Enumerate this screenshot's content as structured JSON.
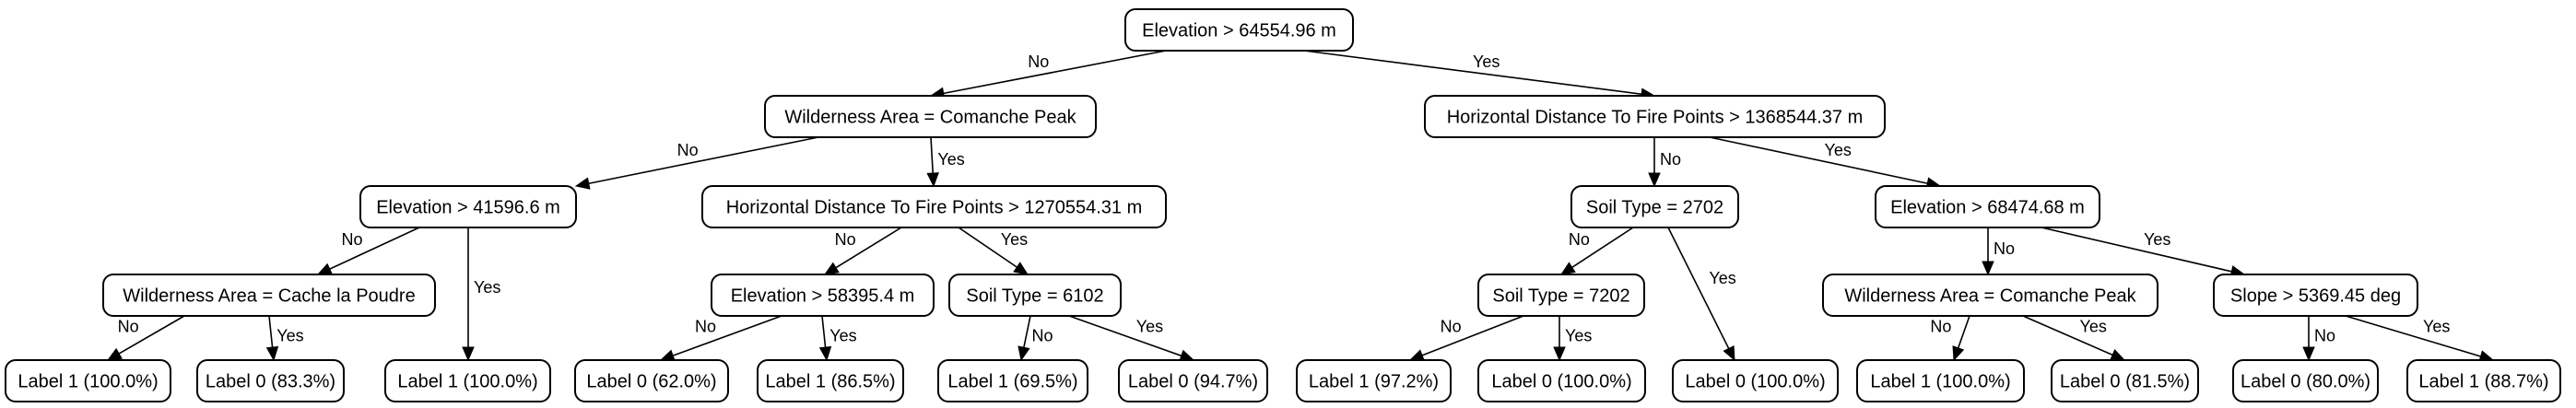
{
  "tree": {
    "nodes": [
      {
        "id": "n0",
        "label": "Elevation > 64554.96 m"
      },
      {
        "id": "n1",
        "label": "Wilderness Area = Comanche Peak"
      },
      {
        "id": "n2",
        "label": "Horizontal Distance To Fire Points > 1368544.37 m"
      },
      {
        "id": "n3",
        "label": "Elevation > 41596.6 m"
      },
      {
        "id": "n4",
        "label": "Horizontal Distance To Fire Points > 1270554.31 m"
      },
      {
        "id": "n5",
        "label": "Soil Type = 2702"
      },
      {
        "id": "n6",
        "label": "Elevation > 68474.68 m"
      },
      {
        "id": "n7",
        "label": "Wilderness Area = Cache la Poudre"
      },
      {
        "id": "n8",
        "label": "Label 1 (100.0%)"
      },
      {
        "id": "n9",
        "label": "Elevation > 58395.4 m"
      },
      {
        "id": "n10",
        "label": "Soil Type = 6102"
      },
      {
        "id": "n11",
        "label": "Soil Type = 7202"
      },
      {
        "id": "n12",
        "label": "Label 0 (100.0%)"
      },
      {
        "id": "n13",
        "label": "Wilderness Area = Comanche Peak"
      },
      {
        "id": "n14",
        "label": "Slope > 5369.45 deg"
      },
      {
        "id": "n15",
        "label": "Label 1 (100.0%)"
      },
      {
        "id": "n16",
        "label": "Label 0 (83.3%)"
      },
      {
        "id": "n17",
        "label": "Label 0 (62.0%)"
      },
      {
        "id": "n18",
        "label": "Label 1 (86.5%)"
      },
      {
        "id": "n19",
        "label": "Label 1 (69.5%)"
      },
      {
        "id": "n20",
        "label": "Label 0 (94.7%)"
      },
      {
        "id": "n21",
        "label": "Label 1 (97.2%)"
      },
      {
        "id": "n22",
        "label": "Label 0 (100.0%)"
      },
      {
        "id": "n23",
        "label": "Label 1 (100.0%)"
      },
      {
        "id": "n24",
        "label": "Label 0 (81.5%)"
      },
      {
        "id": "n25",
        "label": "Label 0 (80.0%)"
      },
      {
        "id": "n26",
        "label": "Label 1 (88.7%)"
      }
    ],
    "edges": [
      {
        "from": "n0",
        "to": "n1",
        "label": "No"
      },
      {
        "from": "n0",
        "to": "n2",
        "label": "Yes"
      },
      {
        "from": "n1",
        "to": "n3",
        "label": "No"
      },
      {
        "from": "n1",
        "to": "n4",
        "label": "Yes"
      },
      {
        "from": "n2",
        "to": "n5",
        "label": "No"
      },
      {
        "from": "n2",
        "to": "n6",
        "label": "Yes"
      },
      {
        "from": "n3",
        "to": "n7",
        "label": "No"
      },
      {
        "from": "n3",
        "to": "n8",
        "label": "Yes"
      },
      {
        "from": "n4",
        "to": "n9",
        "label": "No"
      },
      {
        "from": "n4",
        "to": "n10",
        "label": "Yes"
      },
      {
        "from": "n5",
        "to": "n11",
        "label": "No"
      },
      {
        "from": "n5",
        "to": "n12",
        "label": "Yes"
      },
      {
        "from": "n6",
        "to": "n13",
        "label": "No"
      },
      {
        "from": "n6",
        "to": "n14",
        "label": "Yes"
      },
      {
        "from": "n7",
        "to": "n15",
        "label": "No"
      },
      {
        "from": "n7",
        "to": "n16",
        "label": "Yes"
      },
      {
        "from": "n9",
        "to": "n17",
        "label": "No"
      },
      {
        "from": "n9",
        "to": "n18",
        "label": "Yes"
      },
      {
        "from": "n10",
        "to": "n19",
        "label": "No"
      },
      {
        "from": "n10",
        "to": "n20",
        "label": "Yes"
      },
      {
        "from": "n11",
        "to": "n21",
        "label": "No"
      },
      {
        "from": "n11",
        "to": "n22",
        "label": "Yes"
      },
      {
        "from": "n13",
        "to": "n23",
        "label": "No"
      },
      {
        "from": "n13",
        "to": "n24",
        "label": "Yes"
      },
      {
        "from": "n14",
        "to": "n25",
        "label": "No"
      },
      {
        "from": "n14",
        "to": "n26",
        "label": "Yes"
      }
    ]
  }
}
